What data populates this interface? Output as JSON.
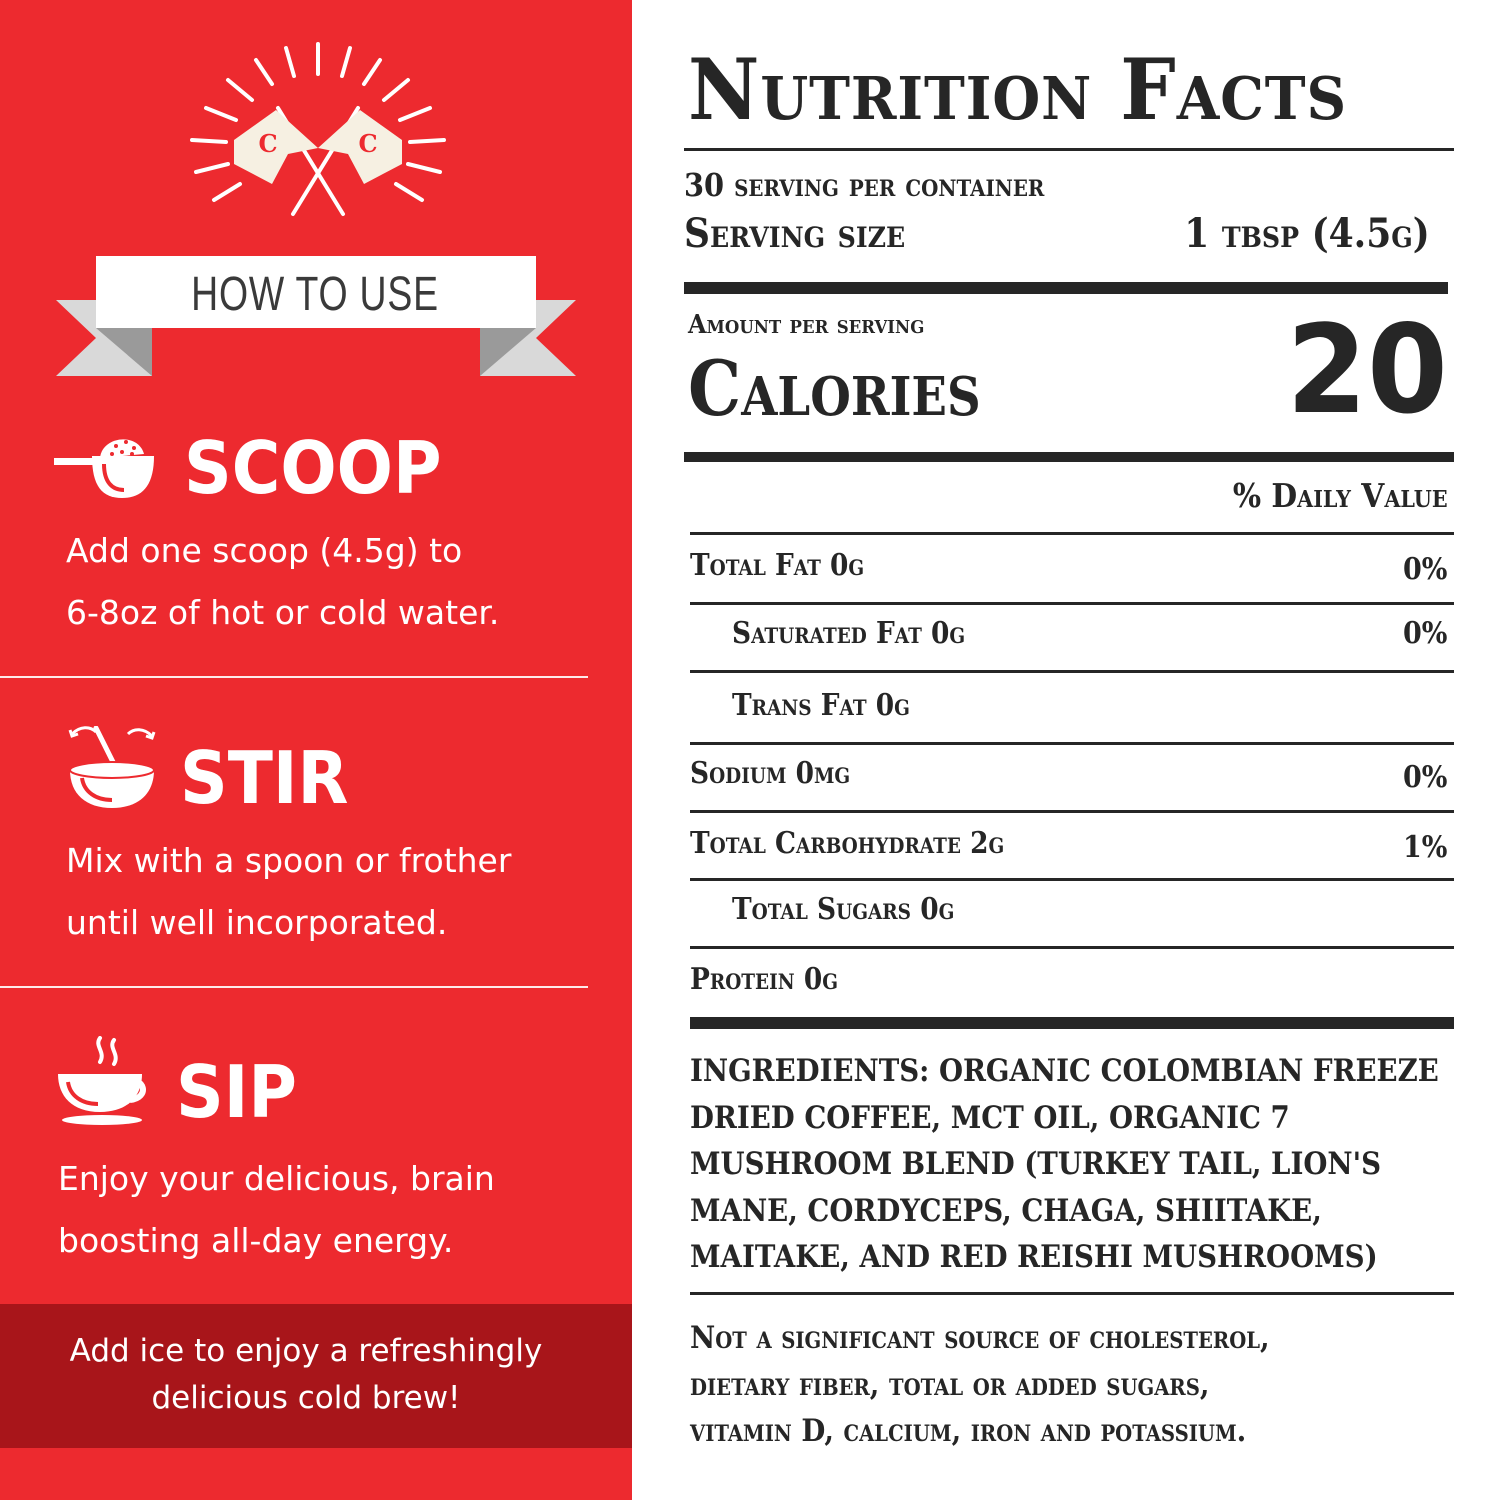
{
  "how_to_use": {
    "heading": "HOW TO USE",
    "logo_letters": [
      "C",
      "C"
    ],
    "steps": [
      {
        "title": "SCOOP",
        "icon": "scoop-icon",
        "lines": [
          "Add one scoop (4.5g) to",
          "6-8oz of hot or cold water."
        ]
      },
      {
        "title": "STIR",
        "icon": "stir-bowl-icon",
        "lines": [
          "Mix with a spoon or frother",
          "until well incorporated."
        ]
      },
      {
        "title": "SIP",
        "icon": "coffee-cup-icon",
        "lines": [
          "Enjoy your delicious, brain",
          "boosting all-day energy."
        ]
      }
    ],
    "tip_lines": [
      "Add ice to enjoy a refreshingly",
      "delicious cold brew!"
    ]
  },
  "nutrition": {
    "title": "Nutrition Facts",
    "servings_per_container": "30 serving per container",
    "serving_size_label": "Serving size",
    "serving_size_value": "1 tbsp (4.5g)",
    "amount_per_serving": "Amount per serving",
    "calories_label": "Calories",
    "calories_value": "20",
    "daily_value_header": "% Daily Value",
    "rows": [
      {
        "label": "Total Fat 0g",
        "pct": "0%"
      },
      {
        "label": "Saturated Fat 0g",
        "pct": "0%"
      },
      {
        "label": "Trans Fat 0g",
        "pct": ""
      },
      {
        "label": "Sodium 0mg",
        "pct": "0%"
      },
      {
        "label": "Total Carbohydrate 2g",
        "pct": "1%"
      },
      {
        "label": "Total Sugars 0g",
        "pct": ""
      },
      {
        "label": "Protein 0g",
        "pct": ""
      }
    ],
    "ingredients_lines": [
      "INGREDIENTS: ORGANIC COLOMBIAN FREEZE",
      "DRIED COFFEE, MCT OIL, ORGANIC 7",
      "MUSHROOM BLEND (TURKEY TAIL, LION'S",
      "MANE, CORDYCEPS, CHAGA, SHIITAKE,",
      "MAITAKE, AND RED REISHI MUSHROOMS)"
    ],
    "disclaimer_lines": [
      "Not a significant source of cholesterol,",
      "dietary fiber, total or added sugars,",
      "vitamin D, calcium, iron and potassium."
    ]
  },
  "colors": {
    "panel_red": "#ed2a2f",
    "tip_dark_red": "#a8151a",
    "label_ink": "#262626"
  }
}
